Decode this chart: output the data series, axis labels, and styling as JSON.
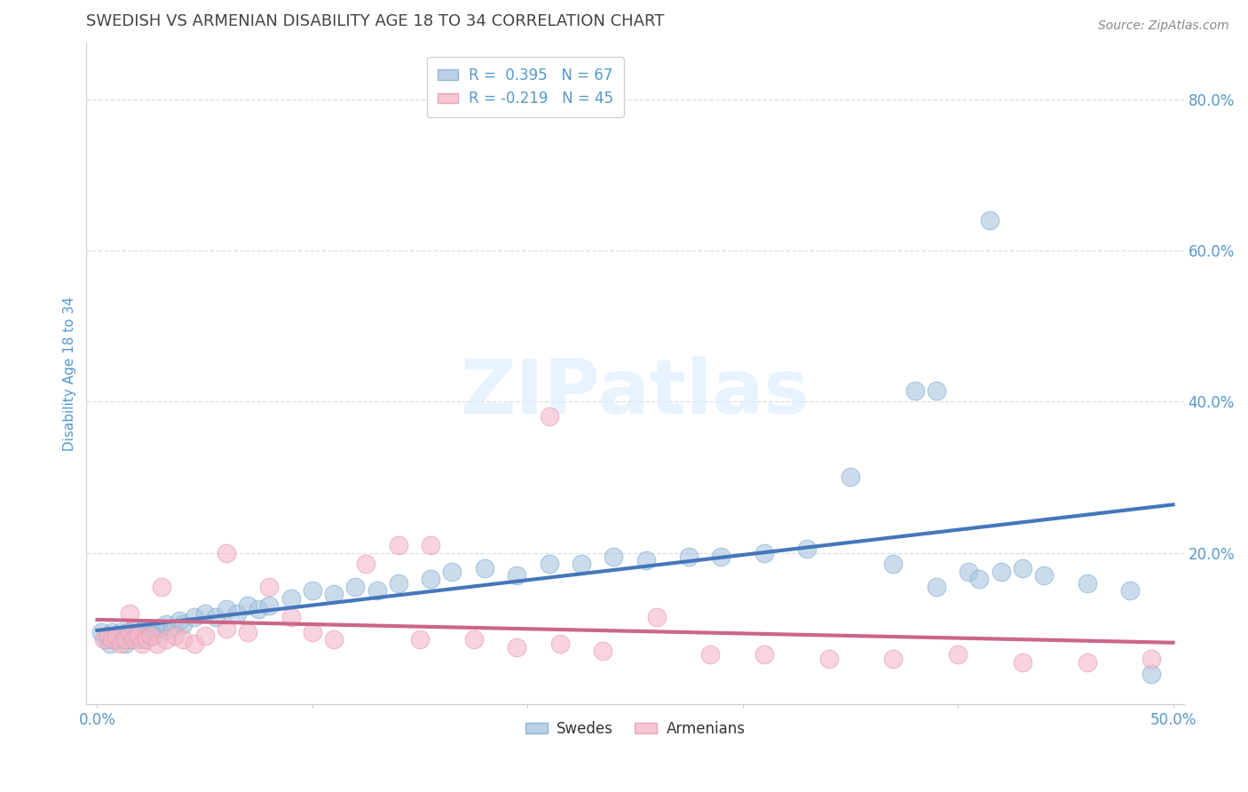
{
  "title": "SWEDISH VS ARMENIAN DISABILITY AGE 18 TO 34 CORRELATION CHART",
  "source": "Source: ZipAtlas.com",
  "ylabel": "Disability Age 18 to 34",
  "xlim": [
    0.0,
    0.5
  ],
  "ylim": [
    0.0,
    0.85
  ],
  "background_color": "#ffffff",
  "grid_color": "#dddddd",
  "blue_color": "#aac4e0",
  "pink_color": "#f4b8c8",
  "blue_edge_color": "#7aaed0",
  "pink_edge_color": "#e896b0",
  "blue_line_color": "#4477bb",
  "pink_line_color": "#cc6688",
  "axis_label_color": "#5599cc",
  "title_color": "#444444",
  "source_color": "#888888",
  "watermark": "ZIPatlas",
  "watermark_color": "#ddeeff",
  "legend_blue_label": "R =  0.395   N = 67",
  "legend_pink_label": "R = -0.219   N = 45",
  "bottom_legend_blue": "Swedes",
  "bottom_legend_pink": "Armenians",
  "swedes_x": [
    0.002,
    0.004,
    0.005,
    0.006,
    0.007,
    0.008,
    0.009,
    0.01,
    0.011,
    0.012,
    0.013,
    0.014,
    0.015,
    0.016,
    0.017,
    0.018,
    0.019,
    0.02,
    0.022,
    0.024,
    0.026,
    0.028,
    0.03,
    0.032,
    0.035,
    0.038,
    0.04,
    0.045,
    0.05,
    0.055,
    0.06,
    0.065,
    0.07,
    0.075,
    0.08,
    0.09,
    0.1,
    0.11,
    0.12,
    0.13,
    0.14,
    0.155,
    0.165,
    0.18,
    0.195,
    0.21,
    0.225,
    0.24,
    0.255,
    0.275,
    0.29,
    0.31,
    0.33,
    0.35,
    0.37,
    0.39,
    0.405,
    0.41,
    0.42,
    0.43,
    0.38,
    0.39,
    0.415,
    0.44,
    0.46,
    0.48,
    0.49
  ],
  "swedes_y": [
    0.095,
    0.085,
    0.09,
    0.08,
    0.095,
    0.085,
    0.09,
    0.085,
    0.095,
    0.09,
    0.08,
    0.095,
    0.09,
    0.085,
    0.1,
    0.09,
    0.095,
    0.085,
    0.1,
    0.095,
    0.09,
    0.1,
    0.095,
    0.105,
    0.1,
    0.11,
    0.105,
    0.115,
    0.12,
    0.115,
    0.125,
    0.12,
    0.13,
    0.125,
    0.13,
    0.14,
    0.15,
    0.145,
    0.155,
    0.15,
    0.16,
    0.165,
    0.175,
    0.18,
    0.17,
    0.185,
    0.185,
    0.195,
    0.19,
    0.195,
    0.195,
    0.2,
    0.205,
    0.3,
    0.185,
    0.155,
    0.175,
    0.165,
    0.175,
    0.18,
    0.415,
    0.415,
    0.64,
    0.17,
    0.16,
    0.15,
    0.04
  ],
  "armenians_x": [
    0.003,
    0.005,
    0.007,
    0.009,
    0.011,
    0.013,
    0.015,
    0.017,
    0.019,
    0.021,
    0.023,
    0.025,
    0.028,
    0.032,
    0.036,
    0.04,
    0.045,
    0.05,
    0.06,
    0.07,
    0.08,
    0.09,
    0.1,
    0.11,
    0.125,
    0.14,
    0.155,
    0.175,
    0.195,
    0.215,
    0.235,
    0.26,
    0.285,
    0.31,
    0.34,
    0.37,
    0.4,
    0.43,
    0.46,
    0.49,
    0.015,
    0.03,
    0.06,
    0.15,
    0.21
  ],
  "armenians_y": [
    0.085,
    0.09,
    0.085,
    0.09,
    0.08,
    0.085,
    0.095,
    0.085,
    0.09,
    0.08,
    0.085,
    0.09,
    0.08,
    0.085,
    0.09,
    0.085,
    0.08,
    0.09,
    0.1,
    0.095,
    0.155,
    0.115,
    0.095,
    0.085,
    0.185,
    0.21,
    0.21,
    0.085,
    0.075,
    0.08,
    0.07,
    0.115,
    0.065,
    0.065,
    0.06,
    0.06,
    0.065,
    0.055,
    0.055,
    0.06,
    0.12,
    0.155,
    0.2,
    0.085,
    0.38
  ]
}
